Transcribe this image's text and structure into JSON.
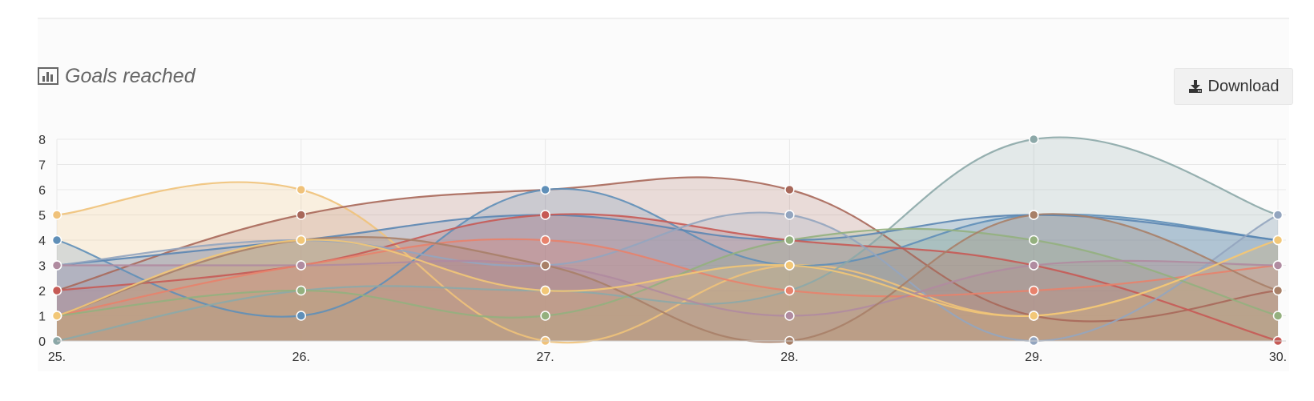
{
  "header": {
    "title": "Goals reached",
    "title_icon": "bar-chart-icon",
    "download_label": "Download",
    "download_icon": "download-icon"
  },
  "chart_data": {
    "type": "area",
    "title": "Goals reached",
    "xlabel": "",
    "ylabel": "",
    "categories": [
      "25.",
      "26.",
      "27.",
      "28.",
      "29.",
      "30."
    ],
    "yticks": [
      "0",
      "1",
      "2",
      "3",
      "4",
      "5",
      "6",
      "7",
      "8"
    ],
    "ylim": [
      0,
      8
    ],
    "grid": true,
    "legend": "none",
    "curve": "smooth",
    "series": [
      {
        "color": "#f0c27a",
        "values": [
          5,
          6,
          0,
          3,
          1,
          4
        ]
      },
      {
        "color": "#a8685a",
        "values": [
          2,
          5,
          6,
          6,
          1,
          2
        ]
      },
      {
        "color": "#5f8fb8",
        "values": [
          4,
          1,
          6,
          3,
          5,
          4
        ]
      },
      {
        "color": "#8ca8a8",
        "values": [
          0,
          2,
          2,
          2,
          8,
          5
        ]
      },
      {
        "color": "#5b86b2",
        "values": [
          3,
          4,
          5,
          4,
          5,
          4
        ]
      },
      {
        "color": "#c65a55",
        "values": [
          2,
          3,
          5,
          4,
          3,
          0
        ]
      },
      {
        "color": "#93a5bf",
        "values": [
          3,
          4,
          3,
          5,
          0,
          5
        ]
      },
      {
        "color": "#e8826c",
        "values": [
          1,
          3,
          4,
          2,
          2,
          3
        ]
      },
      {
        "color": "#94b07e",
        "values": [
          1,
          2,
          1,
          4,
          4,
          1
        ]
      },
      {
        "color": "#b08ba0",
        "values": [
          3,
          3,
          3,
          1,
          3,
          3
        ]
      },
      {
        "color": "#a88068",
        "values": [
          1,
          4,
          3,
          0,
          5,
          2
        ]
      },
      {
        "color": "#f2c777",
        "values": [
          1,
          4,
          2,
          3,
          1,
          4
        ]
      }
    ]
  }
}
